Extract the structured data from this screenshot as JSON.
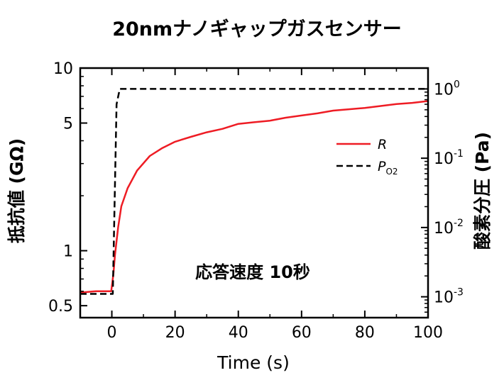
{
  "chart_data": {
    "type": "line",
    "title": "20nmナノギャップガスセンサー",
    "xlabel": "Time (s)",
    "ylabel_left": "抵抗値 (GΩ)",
    "ylabel_right": "酸素分圧 (Pa)",
    "annotation": "応答速度 10秒",
    "xlim": [
      -10,
      100
    ],
    "ylim_left": [
      0.43,
      10
    ],
    "ylim_right": [
      0.0005,
      2
    ],
    "y_left_scale": "log",
    "y_right_scale": "log",
    "x_ticks": [
      0,
      20,
      40,
      60,
      80,
      100
    ],
    "x_tick_labels": [
      "0",
      "20",
      "40",
      "60",
      "80",
      "100"
    ],
    "y_left_ticks": [
      0.5,
      1,
      5,
      10
    ],
    "y_left_tick_labels": [
      "0.5",
      "1",
      "5",
      "10"
    ],
    "y_right_ticks": [
      {
        "value": 0.001,
        "base": "10",
        "exp": "-3"
      },
      {
        "value": 0.01,
        "base": "10",
        "exp": "-2"
      },
      {
        "value": 0.1,
        "base": "10",
        "exp": "-1"
      },
      {
        "value": 1,
        "base": "10",
        "exp": "0"
      }
    ],
    "legend_position": "upper-right",
    "series": [
      {
        "name": "R",
        "axis": "left",
        "color": "#ee1c24",
        "dash": "solid",
        "x": [
          -10,
          -5,
          -1,
          -0.2,
          0.5,
          1,
          2,
          3,
          5,
          8,
          12,
          16,
          20,
          25,
          30,
          35,
          40,
          45,
          50,
          55,
          60,
          65,
          70,
          75,
          80,
          85,
          90,
          95,
          100
        ],
        "y": [
          0.59,
          0.6,
          0.6,
          0.6,
          0.75,
          0.95,
          1.35,
          1.75,
          2.2,
          2.75,
          3.3,
          3.65,
          3.95,
          4.2,
          4.45,
          4.65,
          4.95,
          5.05,
          5.15,
          5.35,
          5.5,
          5.65,
          5.85,
          5.95,
          6.05,
          6.2,
          6.35,
          6.45,
          6.6
        ]
      },
      {
        "name": "P",
        "name_subscript": "O2",
        "axis": "right",
        "color": "#000000",
        "dash": "dashed",
        "x": [
          -10,
          0.3,
          1.5,
          2.5,
          100
        ],
        "y": [
          0.0011,
          0.0011,
          0.6,
          1,
          1
        ]
      }
    ]
  }
}
